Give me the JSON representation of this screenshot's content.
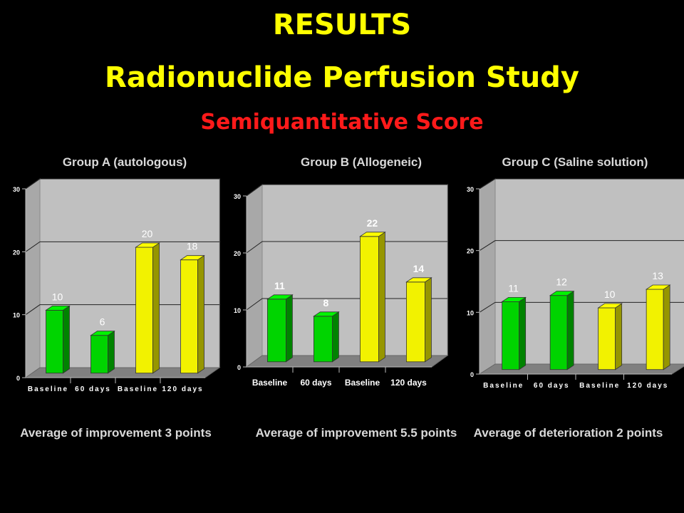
{
  "slide": {
    "title": "RESULTS",
    "subtitle": "Radionuclide Perfusion Study",
    "subtitle2": "Semiquantitative Score"
  },
  "colors": {
    "baseline_bar": "#00d400",
    "followup_bar": "#f2f200",
    "plot_wall": "#c0c0c0",
    "floor": "#808080"
  },
  "chart_data": [
    {
      "type": "bar",
      "title": "Group A (autologous)",
      "categories": [
        "Baseline",
        "60 days",
        "Baseline",
        "120 days"
      ],
      "values": [
        10,
        6,
        20,
        18
      ],
      "data_labels": [
        "10",
        "6",
        "20",
        "18"
      ],
      "bar_colors": [
        "green",
        "green",
        "yellow",
        "yellow"
      ],
      "ylim": [
        0,
        30
      ],
      "yticks": [
        0,
        10,
        20,
        30
      ],
      "grid": true,
      "xlabel": "",
      "ylabel": "",
      "summary": "Average of improvement 3 points"
    },
    {
      "type": "bar",
      "title": "Group B (Allogeneic)",
      "categories": [
        "Baseline",
        "60 days",
        "Baseline",
        "120 days"
      ],
      "values": [
        11,
        8,
        22,
        14
      ],
      "data_labels": [
        "11",
        "8",
        "22",
        "14"
      ],
      "bar_colors": [
        "green",
        "green",
        "yellow",
        "yellow"
      ],
      "ylim": [
        0,
        30
      ],
      "yticks": [
        0,
        10,
        20,
        30
      ],
      "grid": true,
      "xlabel": "",
      "ylabel": "",
      "summary": "Average of improvement 5.5 points"
    },
    {
      "type": "bar",
      "title": "Group C (Saline solution)",
      "categories": [
        "Baseline",
        "60 days",
        "Baseline",
        "120 days"
      ],
      "values": [
        11,
        12,
        10,
        13
      ],
      "data_labels": [
        "11",
        "12",
        "10",
        "13"
      ],
      "bar_colors": [
        "green",
        "green",
        "yellow",
        "yellow"
      ],
      "ylim": [
        0,
        30
      ],
      "yticks": [
        0,
        10,
        20,
        30
      ],
      "grid": true,
      "xlabel": "",
      "ylabel": "",
      "summary": "Average of deterioration 2 points"
    }
  ]
}
